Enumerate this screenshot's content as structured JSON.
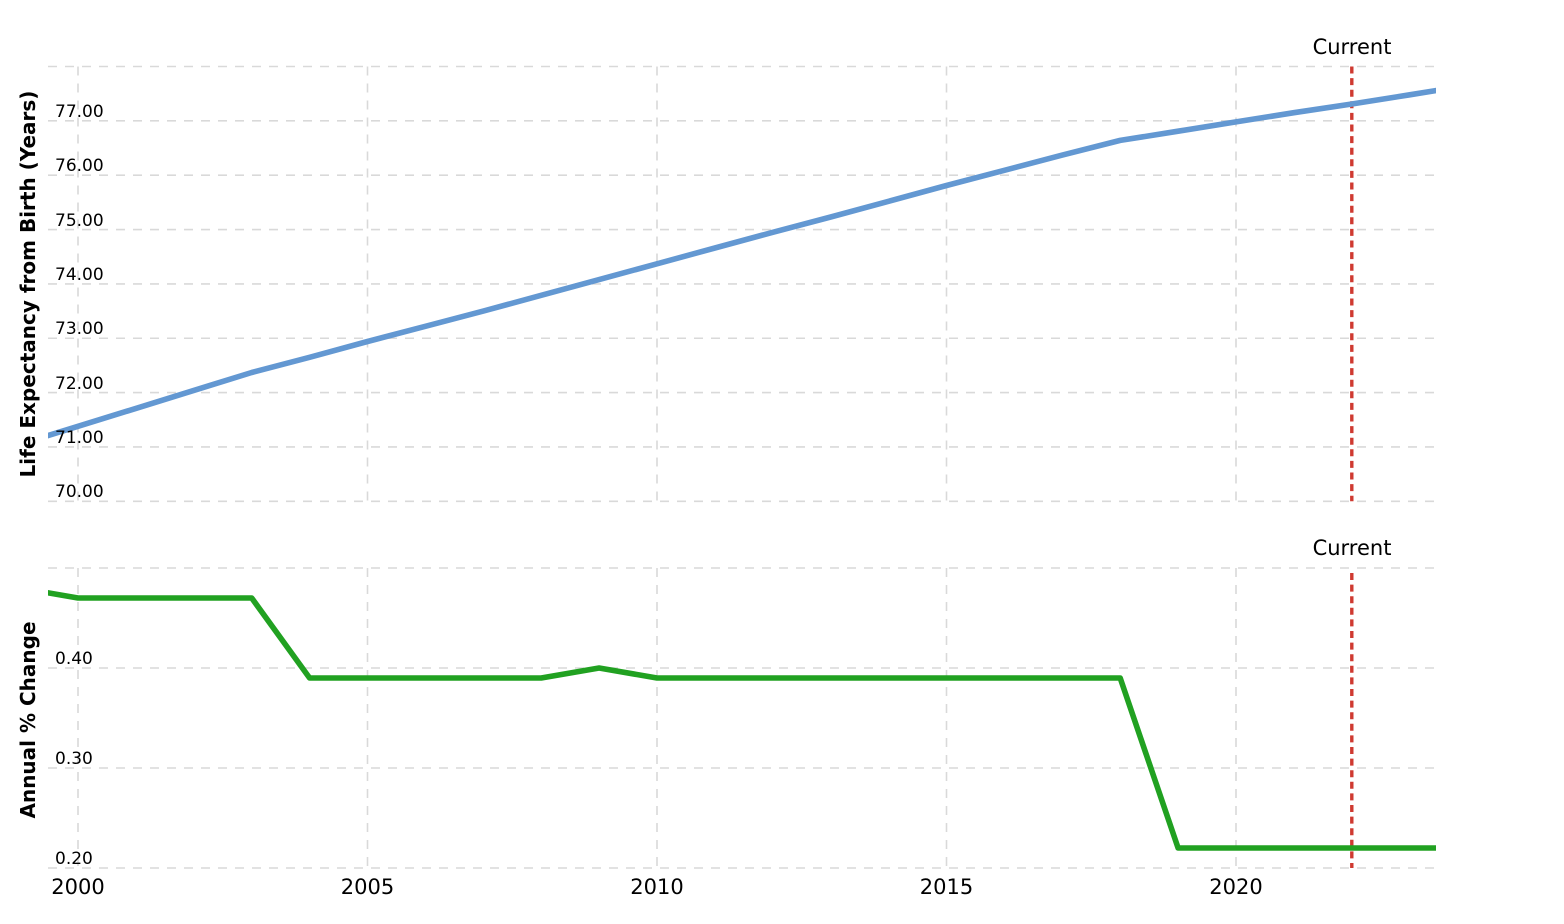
{
  "figure": {
    "background": "#ffffff",
    "grid_color": "#d9d9d9",
    "text_color": "#000000",
    "current_marker": {
      "label": "Current",
      "year": 2022,
      "color": "#cf3a31"
    }
  },
  "x_axis": {
    "tick_years": [
      2000,
      2005,
      2010,
      2015,
      2020
    ],
    "tick_labels": [
      "2000",
      "2005",
      "2010",
      "2015",
      "2020"
    ]
  },
  "chart_data": [
    {
      "type": "line",
      "name": "life-expectancy",
      "title": "",
      "xlabel": "",
      "ylabel": "Life Expectancy from Birth (Years)",
      "color": "#6398d2",
      "grid": true,
      "legend": "none",
      "xlim": [
        1999.5,
        2023.45
      ],
      "ylim": [
        70.0,
        78.0
      ],
      "x": [
        1999,
        2000,
        2001,
        2002,
        2003,
        2004,
        2005,
        2006,
        2007,
        2008,
        2009,
        2010,
        2011,
        2012,
        2013,
        2014,
        2015,
        2016,
        2017,
        2018,
        2019,
        2020,
        2021,
        2022,
        2023,
        2024
      ],
      "values": [
        71.05,
        71.38,
        71.71,
        72.04,
        72.37,
        72.65,
        72.94,
        73.22,
        73.5,
        73.79,
        74.08,
        74.37,
        74.66,
        74.95,
        75.23,
        75.52,
        75.81,
        76.09,
        76.37,
        76.64,
        76.81,
        76.98,
        77.15,
        77.31,
        77.48,
        77.65
      ],
      "gridline_values": [
        78,
        77,
        76,
        75,
        74,
        73,
        72,
        71,
        70
      ],
      "ytick_labels": [
        {
          "value": 77,
          "label": "77.00"
        },
        {
          "value": 76,
          "label": "76.00"
        },
        {
          "value": 75,
          "label": "75.00"
        },
        {
          "value": 74,
          "label": "74.00"
        },
        {
          "value": 73,
          "label": "73.00"
        },
        {
          "value": 72,
          "label": "72.00"
        },
        {
          "value": 71,
          "label": "71.00"
        },
        {
          "value": 70,
          "label": "70.00"
        }
      ],
      "annotation": {
        "label": "Current",
        "x": 2022
      }
    },
    {
      "type": "line",
      "name": "annual-percent-change",
      "title": "",
      "xlabel": "",
      "ylabel": "Annual % Change",
      "color": "#21a121",
      "grid": true,
      "legend": "none",
      "xlim": [
        1999.5,
        2023.45
      ],
      "ylim": [
        0.2,
        0.5
      ],
      "x": [
        1999,
        2000,
        2001,
        2002,
        2003,
        2004,
        2005,
        2006,
        2007,
        2008,
        2009,
        2010,
        2011,
        2012,
        2013,
        2014,
        2015,
        2016,
        2017,
        2018,
        2019,
        2020,
        2021,
        2022,
        2023,
        2024
      ],
      "values": [
        0.48,
        0.47,
        0.47,
        0.47,
        0.47,
        0.39,
        0.39,
        0.39,
        0.39,
        0.39,
        0.4,
        0.39,
        0.39,
        0.39,
        0.39,
        0.39,
        0.39,
        0.39,
        0.39,
        0.39,
        0.22,
        0.22,
        0.22,
        0.22,
        0.22,
        0.22
      ],
      "gridline_values": [
        0.5,
        0.4,
        0.3,
        0.2
      ],
      "ytick_labels": [
        {
          "value": 0.4,
          "label": "0.40"
        },
        {
          "value": 0.3,
          "label": "0.30"
        },
        {
          "value": 0.2,
          "label": "0.20"
        }
      ],
      "annotation": {
        "label": "Current",
        "x": 2022
      }
    }
  ]
}
